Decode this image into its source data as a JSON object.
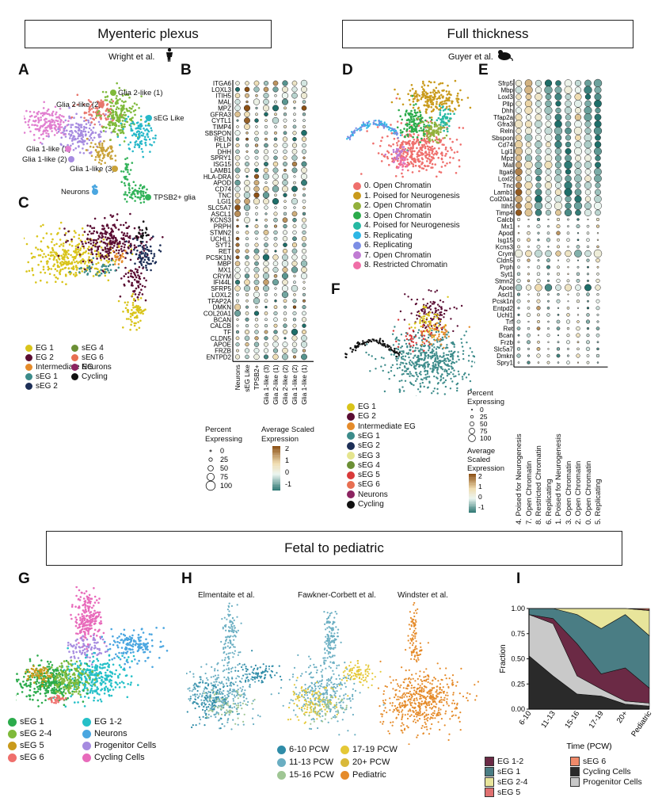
{
  "banners": {
    "myenteric": "Myenteric plexus",
    "full": "Full thickness",
    "fetal": "Fetal to pediatric"
  },
  "citations": {
    "wright": "Wright et al.",
    "guyer": "Guyer et al.",
    "elmentaite": "Elmentaite et al.",
    "fawkner": "Fawkner-Corbett et al.",
    "windster": "Windster et al."
  },
  "panel_letters": [
    "A",
    "B",
    "C",
    "D",
    "E",
    "F",
    "G",
    "H",
    "I"
  ],
  "panelA": {
    "labels": [
      "Glia 2-like (1)",
      "Glia 2-like (2)",
      "sEG Like",
      "Glia 1-like (1)",
      "Glia 1-like (2)",
      "Glia 1-like (3)",
      "Neurons",
      "TPSB2+ glia"
    ],
    "colors": [
      "#7fba3a",
      "#e8766d",
      "#27b8c9",
      "#e17fd0",
      "#a68be0",
      "#c9a239",
      "#4aa6e0",
      "#33b35a"
    ]
  },
  "panelB": {
    "genes": [
      "ITGA6",
      "LOXL3",
      "ITIH5",
      "MAL",
      "MPZ",
      "GFRA3",
      "CYTL1",
      "TIMP4",
      "SBSPON",
      "RELN",
      "PLLP",
      "DHH",
      "SPRY1",
      "ISG15",
      "LAMB1",
      "HLA-DRA",
      "APOD",
      "CD74",
      "TNC",
      "LGI1",
      "SLC5A7",
      "ASCL1",
      "KCNS3",
      "PRPH",
      "STMN2",
      "UCHL1",
      "SYT1",
      "RET",
      "PCSK1N",
      "MBP",
      "MX1",
      "CRYM",
      "IFI44L",
      "SFRP5",
      "LOXL2",
      "TFAP2A",
      "DMKN",
      "COL20A1",
      "BCAN",
      "CALCB",
      "TF",
      "CLDN5",
      "APOE",
      "FRZB",
      "ENTPD2"
    ],
    "clusters": [
      "Neurons",
      "sEG Like",
      "TPSB2+",
      "Glia 1-like (3)",
      "Glia 2-like (1)",
      "Glia 2-like (2)",
      "Glia 1-like (2)",
      "Glia 1-like (1)"
    ],
    "legend_size_title": "Percent\nExpressing",
    "legend_size_values": [
      "0",
      "25",
      "50",
      "75",
      "100"
    ],
    "legend_color_title": "Average Scaled\nExpression",
    "legend_color_ticks": [
      "2",
      "1",
      "0",
      "-1"
    ]
  },
  "panelC": {
    "legend": [
      {
        "label": "EG 1",
        "color": "#d9c41a"
      },
      {
        "label": "EG 2",
        "color": "#5a0d33"
      },
      {
        "label": "Intermediate EG",
        "color": "#e58b2a"
      },
      {
        "label": "sEG 1",
        "color": "#3c8b8a"
      },
      {
        "label": "sEG 2",
        "color": "#1d2f57"
      },
      {
        "label": "sEG 4",
        "color": "#6b8f35"
      },
      {
        "label": "sEG 6",
        "color": "#e86f52"
      },
      {
        "label": "Neurons",
        "color": "#8c2461"
      },
      {
        "label": "Cycling",
        "color": "#111111"
      }
    ]
  },
  "panelD": {
    "legend": [
      {
        "label": "0. Open Chromatin",
        "color": "#ef6f6c"
      },
      {
        "label": "1. Poised for Neurogenesis",
        "color": "#c99a1b"
      },
      {
        "label": "2. Open Chromatin",
        "color": "#93b13c"
      },
      {
        "label": "3. Open Chromatin",
        "color": "#2bab4b"
      },
      {
        "label": "4. Poised for Neurogenesis",
        "color": "#26b9a3"
      },
      {
        "label": "5. Replicating",
        "color": "#2db6e5"
      },
      {
        "label": "6. Replicating",
        "color": "#7c8ee5"
      },
      {
        "label": "7. Open Chromatin",
        "color": "#c07bd3"
      },
      {
        "label": "8. Restricted Chromatin",
        "color": "#f06ea7"
      }
    ]
  },
  "panelE": {
    "genes": [
      "Sfrp5",
      "Mbp",
      "Loxl3",
      "Pllp",
      "Dhh",
      "Tfap2a",
      "Gfra3",
      "Reln",
      "Sbspon",
      "Cd74",
      "Lgi1",
      "Mpz",
      "Mal",
      "Itga6",
      "Loxl2",
      "Tnc",
      "Lamb1",
      "Col20a1",
      "Itih5",
      "Timp4",
      "Calcb",
      "Mx1",
      "Apod",
      "Isg15",
      "Kcns3",
      "Crym",
      "Cldn5",
      "Prph",
      "Syt1",
      "Stmn2",
      "Apoe",
      "Ascl1",
      "Pcsk1n",
      "Entpd2",
      "Uchl1",
      "Trf",
      "Ret",
      "Bcan",
      "Frzb",
      "Slc5a7",
      "Dmkn",
      "Spry1"
    ],
    "clusters": [
      "4. Poised for Neurogenesis",
      "7. Open Chromatin",
      "8. Restricted Chromatin",
      "6. Replicating",
      "1. Poised for Neurogenesis",
      "3. Open Chromatin",
      "2. Open Chromatin",
      "0. Open Chromatin",
      "5. Replicating"
    ]
  },
  "panelF": {
    "legend": [
      {
        "label": "EG 1",
        "color": "#d9c41a"
      },
      {
        "label": "EG 2",
        "color": "#5a0d33"
      },
      {
        "label": "Intermediate EG",
        "color": "#e58b2a"
      },
      {
        "label": "sEG 1",
        "color": "#3c8b8a"
      },
      {
        "label": "sEG 2",
        "color": "#1d2f57"
      },
      {
        "label": "sEG 3",
        "color": "#e5e58e"
      },
      {
        "label": "sEG 4",
        "color": "#6b8f35"
      },
      {
        "label": "sEG 5",
        "color": "#d93a3a"
      },
      {
        "label": "sEG 6",
        "color": "#e86f52"
      },
      {
        "label": "Neurons",
        "color": "#8c2461"
      },
      {
        "label": "Cycling",
        "color": "#111111"
      }
    ],
    "size_title": "Percent\nExpressing",
    "size_values": [
      "0",
      "25",
      "50",
      "75",
      "100"
    ],
    "color_title": "Average\nScaled\nExpression",
    "color_ticks": [
      "2",
      "1",
      "0",
      "-1"
    ]
  },
  "panelG": {
    "legend": [
      {
        "label": "sEG 1",
        "color": "#2bab4b"
      },
      {
        "label": "sEG 2-4",
        "color": "#7fba3a"
      },
      {
        "label": "sEG 5",
        "color": "#c99a1b"
      },
      {
        "label": "sEG 6",
        "color": "#ef6f6c"
      },
      {
        "label": "EG 1-2",
        "color": "#25c0c8"
      },
      {
        "label": "Neurons",
        "color": "#4aa6e0"
      },
      {
        "label": "Progenitor Cells",
        "color": "#a68be0"
      },
      {
        "label": "Cycling Cells",
        "color": "#e86bbb"
      }
    ]
  },
  "panelH": {
    "legend": [
      {
        "label": "6-10 PCW",
        "color": "#2f8ca8"
      },
      {
        "label": "17-19 PCW",
        "color": "#e5c836"
      },
      {
        "label": "11-13 PCW",
        "color": "#6aaec2"
      },
      {
        "label": "20+ PCW",
        "color": "#d9b93a"
      },
      {
        "label": "15-16 PCW",
        "color": "#9fc694"
      },
      {
        "label": "Pediatric",
        "color": "#e58b2a"
      }
    ]
  },
  "chart_data": {
    "type": "area",
    "title": "",
    "xlabel": "Time (PCW)",
    "ylabel": "Fraction",
    "categories": [
      "6-10",
      "11-13",
      "15-16",
      "17-19",
      "20+",
      "Pediatric"
    ],
    "ylim": [
      0,
      1
    ],
    "yticks": [
      "0.00",
      "0.25",
      "0.50",
      "0.75",
      "1.00"
    ],
    "series": [
      {
        "name": "Cycling Cells",
        "color": "#2a2a2a",
        "values": [
          0.53,
          0.33,
          0.15,
          0.13,
          0.05,
          0.03
        ]
      },
      {
        "name": "Progenitor Cells",
        "color": "#c9c9c9",
        "values": [
          0.41,
          0.52,
          0.18,
          0.07,
          0.03,
          0.03
        ]
      },
      {
        "name": "EG 1-2",
        "color": "#6b2a45",
        "values": [
          0.0,
          0.05,
          0.32,
          0.15,
          0.33,
          0.15
        ]
      },
      {
        "name": "sEG 1",
        "color": "#4a7d84",
        "values": [
          0.06,
          0.1,
          0.29,
          0.45,
          0.53,
          0.52
        ]
      },
      {
        "name": "sEG 2-4",
        "color": "#e8e59b",
        "values": [
          0.0,
          0.0,
          0.06,
          0.2,
          0.06,
          0.25
        ]
      },
      {
        "name": "sEG 5",
        "color": "#e07070",
        "values": [
          0.0,
          0.0,
          0.0,
          0.0,
          0.0,
          0.01
        ]
      },
      {
        "name": "sEG 6",
        "color": "#f08a6a",
        "values": [
          0.0,
          0.0,
          0.0,
          0.0,
          0.0,
          0.01
        ]
      }
    ],
    "legend": [
      "EG 1-2",
      "sEG 1",
      "sEG 2-4",
      "sEG 5",
      "sEG 6",
      "Cycling Cells",
      "Progenitor Cells"
    ]
  }
}
